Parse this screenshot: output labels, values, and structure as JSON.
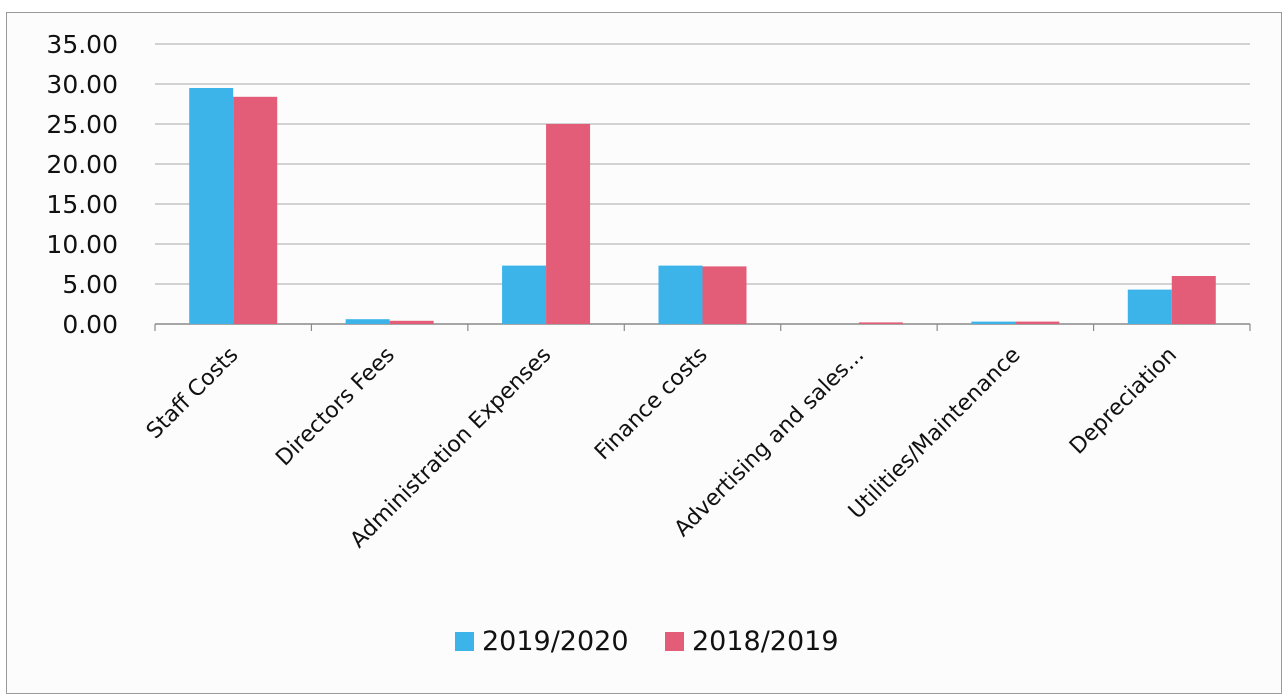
{
  "chart_data": {
    "type": "bar",
    "categories": [
      "Staff Costs",
      "Directors Fees",
      "Administration Expenses",
      "Finance costs",
      "Advertising and sales...",
      "Utilities/Maintenance",
      "Depreciation"
    ],
    "series": [
      {
        "name": "2019/2020",
        "color": "#3cb4ea",
        "values": [
          29.5,
          0.6,
          7.3,
          7.3,
          0.0,
          0.3,
          4.3
        ]
      },
      {
        "name": "2018/2019",
        "color": "#e35d78",
        "values": [
          28.4,
          0.4,
          25.0,
          7.2,
          0.2,
          0.3,
          6.0
        ]
      }
    ],
    "yticks": [
      "0.00",
      "5.00",
      "10.00",
      "15.00",
      "20.00",
      "25.00",
      "30.00",
      "35.00"
    ],
    "ylim": [
      0,
      35
    ],
    "grid": true,
    "legend_position": "bottom"
  }
}
